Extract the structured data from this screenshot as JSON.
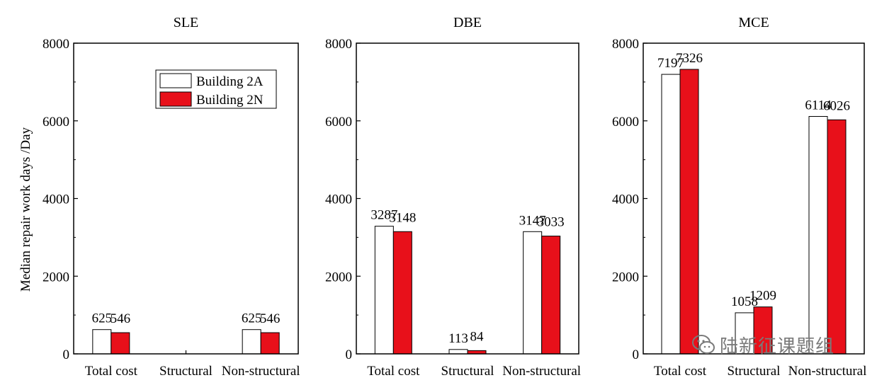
{
  "colors": {
    "building_2a": "#ffffff",
    "building_2n": "#e8101a",
    "stroke": "#000000"
  },
  "y_axis_label": "Median repair work days /Day",
  "legend": {
    "building_2a": "Building 2A",
    "building_2n": "Building 2N"
  },
  "watermark": {
    "text": "陆新征课题组",
    "icon": "wechat-icon"
  },
  "chart_data": [
    {
      "type": "bar",
      "title": "SLE",
      "categories": [
        "Total cost",
        "Structural",
        "Non-structural"
      ],
      "ylim": [
        0,
        8000
      ],
      "yticks": [
        0,
        2000,
        4000,
        6000,
        8000
      ],
      "legend_position": "top-right",
      "series": [
        {
          "name": "Building 2A",
          "values": [
            625,
            0,
            625
          ],
          "labels": [
            "625",
            "",
            "625"
          ]
        },
        {
          "name": "Building 2N",
          "values": [
            546,
            0,
            546
          ],
          "labels": [
            "546",
            "",
            "546"
          ]
        }
      ]
    },
    {
      "type": "bar",
      "title": "DBE",
      "categories": [
        "Total cost",
        "Structural",
        "Non-structural"
      ],
      "ylim": [
        0,
        8000
      ],
      "yticks": [
        0,
        2000,
        4000,
        6000,
        8000
      ],
      "series": [
        {
          "name": "Building 2A",
          "values": [
            3287,
            113,
            3147
          ],
          "labels": [
            "3287",
            "113",
            "3147"
          ]
        },
        {
          "name": "Building 2N",
          "values": [
            3148,
            84,
            3033
          ],
          "labels": [
            "3148",
            "84",
            "3033"
          ]
        }
      ]
    },
    {
      "type": "bar",
      "title": "MCE",
      "categories": [
        "Total cost",
        "Structural",
        "Non-structural"
      ],
      "ylim": [
        0,
        8000
      ],
      "yticks": [
        0,
        2000,
        4000,
        6000,
        8000
      ],
      "series": [
        {
          "name": "Building 2A",
          "values": [
            7197,
            1058,
            6114
          ],
          "labels": [
            "7197",
            "1058",
            "6114"
          ]
        },
        {
          "name": "Building 2N",
          "values": [
            7326,
            1209,
            6026
          ],
          "labels": [
            "7326",
            "1209",
            "6026"
          ]
        }
      ]
    }
  ]
}
